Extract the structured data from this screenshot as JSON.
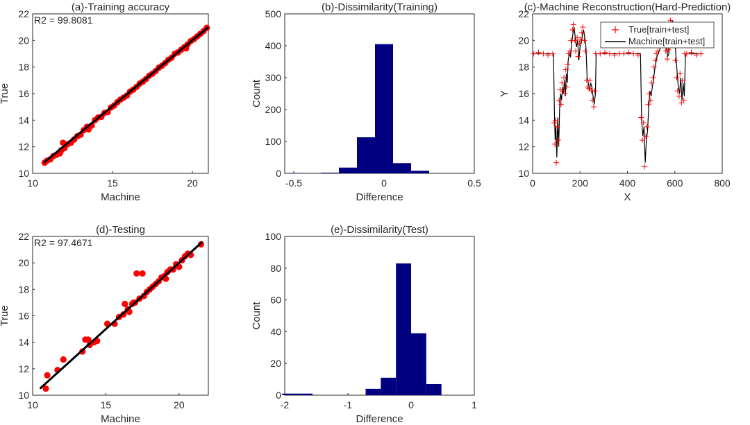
{
  "colors": {
    "scatter": "#ff0000",
    "fit_line": "#000000",
    "bar": "#000080",
    "axis": "#262626",
    "true_marker": "#ff0000",
    "machine_line": "#000000"
  },
  "chart_data": [
    {
      "type": "scatter",
      "title": "(a)-Training accuracy",
      "xlabel": "Machine",
      "ylabel": "True",
      "xlim": [
        10,
        21
      ],
      "ylim": [
        10,
        22
      ],
      "xticks": [
        10,
        15,
        20
      ],
      "yticks": [
        10,
        12,
        14,
        16,
        18,
        20,
        22
      ],
      "annotation": "R2 = 99.8081",
      "fit_line": [
        [
          10.7,
          10.8
        ],
        [
          21.0,
          21.0
        ]
      ],
      "points": [
        [
          10.75,
          10.8
        ],
        [
          10.9,
          10.95
        ],
        [
          11.1,
          11.05
        ],
        [
          11.3,
          11.3
        ],
        [
          11.5,
          11.4
        ],
        [
          11.7,
          11.5
        ],
        [
          11.8,
          11.75
        ],
        [
          11.9,
          12.3
        ],
        [
          12.0,
          11.9
        ],
        [
          12.2,
          12.2
        ],
        [
          12.4,
          12.3
        ],
        [
          12.6,
          12.55
        ],
        [
          12.8,
          12.8
        ],
        [
          13.0,
          12.9
        ],
        [
          13.2,
          13.25
        ],
        [
          13.4,
          13.5
        ],
        [
          13.5,
          13.3
        ],
        [
          13.7,
          13.6
        ],
        [
          13.9,
          14.0
        ],
        [
          14.1,
          14.2
        ],
        [
          14.3,
          14.25
        ],
        [
          14.5,
          14.55
        ],
        [
          14.7,
          14.6
        ],
        [
          14.9,
          14.95
        ],
        [
          15.1,
          15.1
        ],
        [
          15.3,
          15.35
        ],
        [
          15.5,
          15.55
        ],
        [
          15.7,
          15.7
        ],
        [
          15.9,
          15.85
        ],
        [
          16.1,
          16.15
        ],
        [
          16.3,
          16.3
        ],
        [
          16.5,
          16.5
        ],
        [
          16.7,
          16.75
        ],
        [
          16.9,
          16.9
        ],
        [
          17.1,
          17.1
        ],
        [
          17.3,
          17.35
        ],
        [
          17.5,
          17.5
        ],
        [
          17.7,
          17.7
        ],
        [
          17.9,
          17.95
        ],
        [
          18.1,
          18.1
        ],
        [
          18.3,
          18.3
        ],
        [
          18.5,
          18.55
        ],
        [
          18.7,
          18.7
        ],
        [
          18.9,
          19.0
        ],
        [
          19.1,
          19.1
        ],
        [
          19.3,
          19.3
        ],
        [
          19.5,
          19.5
        ],
        [
          19.6,
          19.4
        ],
        [
          19.7,
          19.7
        ],
        [
          19.9,
          19.95
        ],
        [
          20.1,
          20.1
        ],
        [
          20.3,
          20.3
        ],
        [
          20.5,
          20.5
        ],
        [
          20.7,
          20.7
        ],
        [
          20.9,
          20.95
        ]
      ]
    },
    {
      "type": "bar",
      "title": "(b)-Dissimilarity(Training)",
      "xlabel": "Difference",
      "ylabel": "Count",
      "xlim": [
        -0.55,
        0.5
      ],
      "ylim": [
        0,
        500
      ],
      "xticks": [
        -0.5,
        0,
        0.5
      ],
      "yticks": [
        0,
        100,
        200,
        300,
        400,
        500
      ],
      "bin_width": 0.1,
      "bin_centers": [
        -0.5,
        -0.4,
        -0.3,
        -0.2,
        -0.1,
        0.0,
        0.1,
        0.2
      ],
      "values": [
        1,
        0,
        2,
        18,
        113,
        405,
        32,
        8
      ]
    },
    {
      "type": "line",
      "title": "(c)-Machine Reconstruction(Hard-Prediction)",
      "xlabel": "X",
      "ylabel": "Y",
      "xlim": [
        0,
        800
      ],
      "ylim": [
        10,
        22
      ],
      "xticks": [
        0,
        200,
        400,
        600,
        800
      ],
      "yticks": [
        10,
        12,
        14,
        16,
        18,
        20,
        22
      ],
      "legend": [
        "True[train+test]",
        "Machine[train+test]"
      ],
      "legend_position": "top-right",
      "series": [
        {
          "name": "Machine[train+test]",
          "x": [
            0,
            20,
            40,
            60,
            80,
            88,
            92,
            95,
            98,
            102,
            106,
            110,
            114,
            118,
            122,
            126,
            130,
            134,
            138,
            142,
            146,
            150,
            155,
            160,
            165,
            170,
            175,
            180,
            185,
            190,
            195,
            200,
            205,
            210,
            215,
            220,
            225,
            230,
            235,
            240,
            245,
            250,
            255,
            260,
            265,
            268,
            272,
            280,
            300,
            320,
            340,
            360,
            380,
            400,
            420,
            440,
            455,
            460,
            465,
            470,
            475,
            480,
            485,
            490,
            495,
            500,
            505,
            510,
            515,
            520,
            525,
            530,
            540,
            550,
            555,
            560,
            565,
            570,
            575,
            580,
            585,
            590,
            595,
            600,
            605,
            610,
            615,
            620,
            625,
            630,
            635,
            640,
            645,
            660,
            680,
            700,
            720
          ],
          "y": [
            19.0,
            19.0,
            19.0,
            19.0,
            19.0,
            19.0,
            14.5,
            12.5,
            13.6,
            11.2,
            14.2,
            12.0,
            15.0,
            16.0,
            15.5,
            16.5,
            16.0,
            17.0,
            15.8,
            17.5,
            16.8,
            18.5,
            19.0,
            18.8,
            19.8,
            20.5,
            21.0,
            20.2,
            19.5,
            20.0,
            18.5,
            19.5,
            19.8,
            20.4,
            20.8,
            20.2,
            19.5,
            17.2,
            16.8,
            16.2,
            16.8,
            16.5,
            15.8,
            15.2,
            16.0,
            19.0,
            19.0,
            19.0,
            19.0,
            19.0,
            19.0,
            19.0,
            19.0,
            19.0,
            19.0,
            19.0,
            19.0,
            14.0,
            12.8,
            13.5,
            10.8,
            12.5,
            13.2,
            15.0,
            16.2,
            15.8,
            16.5,
            17.0,
            17.8,
            18.3,
            18.8,
            19.0,
            19.5,
            20.0,
            20.5,
            20.0,
            19.5,
            18.8,
            19.0,
            20.8,
            21.2,
            21.5,
            20.5,
            20.0,
            18.8,
            17.5,
            16.5,
            16.0,
            17.2,
            15.5,
            16.8,
            15.8,
            19.0,
            19.0,
            19.0,
            19.0,
            19.0
          ]
        },
        {
          "name": "True[train+test]",
          "x": [
            5,
            25,
            45,
            65,
            85,
            91,
            94,
            97,
            100,
            104,
            108,
            112,
            116,
            120,
            124,
            128,
            132,
            136,
            140,
            144,
            148,
            152,
            158,
            162,
            168,
            172,
            178,
            182,
            188,
            192,
            198,
            202,
            208,
            212,
            218,
            222,
            228,
            232,
            238,
            242,
            248,
            252,
            258,
            262,
            266,
            285,
            305,
            325,
            345,
            365,
            385,
            405,
            425,
            445,
            458,
            463,
            468,
            472,
            478,
            482,
            488,
            492,
            498,
            502,
            508,
            512,
            518,
            522,
            528,
            535,
            545,
            552,
            558,
            562,
            568,
            572,
            578,
            582,
            588,
            592,
            598,
            602,
            608,
            612,
            618,
            622,
            628,
            632,
            638,
            642,
            650,
            670,
            690,
            710
          ],
          "y": [
            19.0,
            19.1,
            19.0,
            18.9,
            19.0,
            13.8,
            12.2,
            14.0,
            10.8,
            13.5,
            12.5,
            15.5,
            16.3,
            15.2,
            16.8,
            16.2,
            17.2,
            16.0,
            17.8,
            16.5,
            18.2,
            19.0,
            19.2,
            20.0,
            20.8,
            21.2,
            20.0,
            19.2,
            20.2,
            18.8,
            19.8,
            20.1,
            20.6,
            21.0,
            20.0,
            19.2,
            17.0,
            16.5,
            16.4,
            17.0,
            16.2,
            15.5,
            15.0,
            16.2,
            19.0,
            19.0,
            19.1,
            19.0,
            18.9,
            19.0,
            19.0,
            19.1,
            19.0,
            18.9,
            14.2,
            12.5,
            13.8,
            10.5,
            12.8,
            13.5,
            15.2,
            16.0,
            15.5,
            16.8,
            17.2,
            18.0,
            18.5,
            19.0,
            19.2,
            19.8,
            20.2,
            20.3,
            19.8,
            19.2,
            18.6,
            19.3,
            21.0,
            21.5,
            21.2,
            20.2,
            19.8,
            18.5,
            17.2,
            16.2,
            15.8,
            17.5,
            15.3,
            17.0,
            15.5,
            19.0,
            19.0,
            19.1,
            18.9,
            19.0
          ]
        }
      ]
    },
    {
      "type": "scatter",
      "title": "(d)-Testing",
      "xlabel": "Machine",
      "ylabel": "True",
      "xlim": [
        10,
        22
      ],
      "ylim": [
        10,
        22
      ],
      "xticks": [
        10,
        15,
        20
      ],
      "yticks": [
        10,
        12,
        14,
        16,
        18,
        20,
        22
      ],
      "annotation": "R2 = 97.4671",
      "fit_line": [
        [
          10.5,
          10.5
        ],
        [
          21.6,
          21.6
        ]
      ],
      "points": [
        [
          10.9,
          10.5
        ],
        [
          11.0,
          11.5
        ],
        [
          11.7,
          11.9
        ],
        [
          12.1,
          12.7
        ],
        [
          13.4,
          13.3
        ],
        [
          13.6,
          14.2
        ],
        [
          13.8,
          14.2
        ],
        [
          13.9,
          13.8
        ],
        [
          14.2,
          14.0
        ],
        [
          14.4,
          14.1
        ],
        [
          15.1,
          15.4
        ],
        [
          15.6,
          15.4
        ],
        [
          15.9,
          15.9
        ],
        [
          16.2,
          16.1
        ],
        [
          16.3,
          16.9
        ],
        [
          16.5,
          16.5
        ],
        [
          16.6,
          16.3
        ],
        [
          16.8,
          16.9
        ],
        [
          16.9,
          17.0
        ],
        [
          17.0,
          17.0
        ],
        [
          17.1,
          19.2
        ],
        [
          17.3,
          17.3
        ],
        [
          17.5,
          19.2
        ],
        [
          17.6,
          17.5
        ],
        [
          17.8,
          17.8
        ],
        [
          18.0,
          18.0
        ],
        [
          18.2,
          18.2
        ],
        [
          18.4,
          18.4
        ],
        [
          18.6,
          18.6
        ],
        [
          18.8,
          18.9
        ],
        [
          19.0,
          19.0
        ],
        [
          19.1,
          18.8
        ],
        [
          19.2,
          19.3
        ],
        [
          19.4,
          19.5
        ],
        [
          19.6,
          19.5
        ],
        [
          19.8,
          19.9
        ],
        [
          20.0,
          19.7
        ],
        [
          20.2,
          20.2
        ],
        [
          20.4,
          20.5
        ],
        [
          20.6,
          20.7
        ],
        [
          20.8,
          20.6
        ],
        [
          21.5,
          21.4
        ]
      ]
    },
    {
      "type": "bar",
      "title": "(e)-Dissimilarity(Test)",
      "xlabel": "Difference",
      "ylabel": "Count",
      "xlim": [
        -2,
        1
      ],
      "ylim": [
        0,
        100
      ],
      "xticks": [
        -2,
        -1,
        0,
        1
      ],
      "yticks": [
        0,
        20,
        40,
        60,
        80,
        100
      ],
      "bin_width": 0.24,
      "bin_centers": [
        -1.8,
        -0.6,
        -0.36,
        -0.12,
        0.12,
        0.36
      ],
      "bin_widths": [
        0.48,
        0.24,
        0.24,
        0.24,
        0.24,
        0.24
      ],
      "values": [
        1,
        4,
        11,
        83,
        39,
        7
      ]
    }
  ]
}
